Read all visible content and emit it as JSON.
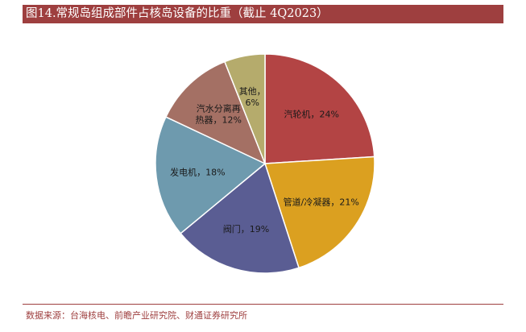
{
  "header": {
    "title": "图14.常规岛组成部件占核岛设备的比重（截止 4Q2023）"
  },
  "footer": {
    "source": "数据来源：台海核电、前瞻产业研究院、财通证券研究所"
  },
  "chart_data": {
    "type": "pie",
    "title": "",
    "slices": [
      {
        "label_lines": [
          "汽轮机，24%"
        ],
        "name": "汽轮机",
        "value": 24,
        "color": "#b34444"
      },
      {
        "label_lines": [
          "管道/冷凝器，21%"
        ],
        "name": "管道/冷凝器",
        "value": 21,
        "color": "#dba020"
      },
      {
        "label_lines": [
          "阀门，19%"
        ],
        "name": "阀门",
        "value": 19,
        "color": "#5a5d93"
      },
      {
        "label_lines": [
          "发电机，18%"
        ],
        "name": "发电机",
        "value": 18,
        "color": "#6e9aae"
      },
      {
        "label_lines": [
          "汽水分离再",
          "热器，12%"
        ],
        "name": "汽水分离再热器",
        "value": 12,
        "color": "#a47064"
      },
      {
        "label_lines": [
          "其他，",
          "6%"
        ],
        "name": "其他",
        "value": 6,
        "color": "#b5ab6c"
      }
    ]
  }
}
